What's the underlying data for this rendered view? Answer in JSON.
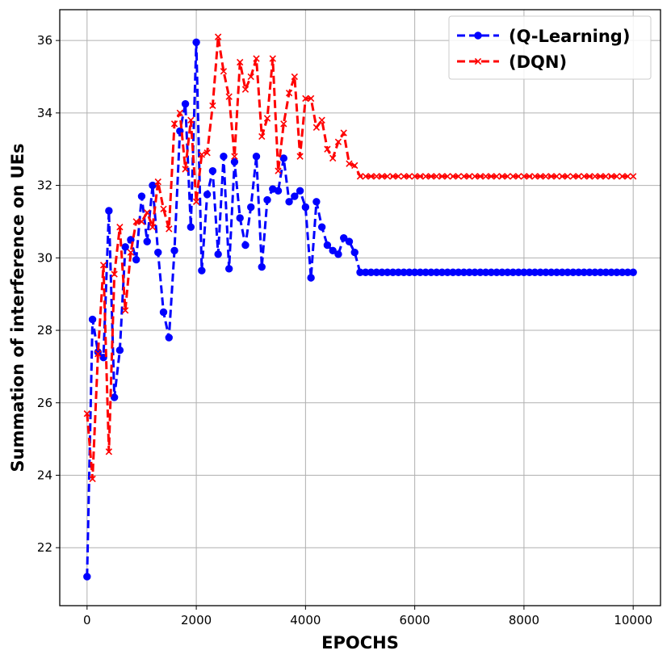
{
  "chart_data": {
    "type": "line",
    "xlabel": "EPOCHS",
    "ylabel": "Summation of interference on UEs",
    "xlim": [
      -500,
      10500
    ],
    "ylim": [
      20.4,
      36.85
    ],
    "xticks": [
      0,
      2000,
      4000,
      6000,
      8000,
      10000
    ],
    "yticks": [
      22,
      24,
      26,
      28,
      30,
      32,
      34,
      36
    ],
    "grid": true,
    "legend_position": "top-right",
    "series": [
      {
        "name": "(Q-Learning)",
        "color": "#0000ff",
        "marker": "circle",
        "line_style": "dashed",
        "x": [
          0,
          100,
          200,
          300,
          400,
          500,
          600,
          700,
          800,
          900,
          1000,
          1100,
          1200,
          1300,
          1400,
          1500,
          1600,
          1700,
          1800,
          1900,
          2000,
          2100,
          2200,
          2300,
          2400,
          2500,
          2600,
          2700,
          2800,
          2900,
          3000,
          3100,
          3200,
          3300,
          3400,
          3500,
          3600,
          3700,
          3800,
          3900,
          4000,
          4100,
          4200,
          4300,
          4400,
          4500,
          4600,
          4700,
          4800,
          4900,
          5000,
          5100,
          5200,
          5300,
          5400,
          5500,
          5600,
          5700,
          5800,
          5900,
          6000,
          6100,
          6200,
          6300,
          6400,
          6500,
          6600,
          6700,
          6800,
          6900,
          7000,
          7100,
          7200,
          7300,
          7400,
          7500,
          7600,
          7700,
          7800,
          7900,
          8000,
          8100,
          8200,
          8300,
          8400,
          8500,
          8600,
          8700,
          8800,
          8900,
          9000,
          9100,
          9200,
          9300,
          9400,
          9500,
          9600,
          9700,
          9800,
          9900,
          10000
        ],
        "y": [
          21.2,
          28.3,
          27.4,
          27.25,
          31.3,
          26.15,
          27.45,
          30.3,
          30.5,
          29.95,
          31.7,
          30.45,
          32.0,
          30.15,
          28.5,
          27.8,
          30.2,
          33.5,
          34.25,
          30.85,
          35.95,
          29.65,
          31.75,
          32.4,
          30.1,
          32.8,
          29.7,
          32.65,
          31.1,
          30.35,
          31.4,
          32.8,
          29.75,
          31.6,
          31.9,
          31.85,
          32.75,
          31.55,
          31.7,
          31.85,
          31.4,
          29.45,
          31.55,
          30.85,
          30.35,
          30.2,
          30.1,
          30.55,
          30.45,
          30.15,
          29.6,
          29.6,
          29.6,
          29.6,
          29.6,
          29.6,
          29.6,
          29.6,
          29.6,
          29.6,
          29.6,
          29.6,
          29.6,
          29.6,
          29.6,
          29.6,
          29.6,
          29.6,
          29.6,
          29.6,
          29.6,
          29.6,
          29.6,
          29.6,
          29.6,
          29.6,
          29.6,
          29.6,
          29.6,
          29.6,
          29.6,
          29.6,
          29.6,
          29.6,
          29.6,
          29.6,
          29.6,
          29.6,
          29.6,
          29.6,
          29.6,
          29.6,
          29.6,
          29.6,
          29.6,
          29.6,
          29.6,
          29.6,
          29.6,
          29.6,
          29.6
        ]
      },
      {
        "name": "(DQN)",
        "color": "#ff0000",
        "marker": "x",
        "line_style": "dashed",
        "x": [
          0,
          100,
          200,
          300,
          400,
          500,
          600,
          700,
          800,
          900,
          1000,
          1100,
          1200,
          1300,
          1400,
          1500,
          1600,
          1700,
          1800,
          1900,
          2000,
          2100,
          2200,
          2300,
          2400,
          2500,
          2600,
          2700,
          2800,
          2900,
          3000,
          3100,
          3200,
          3300,
          3400,
          3500,
          3600,
          3700,
          3800,
          3900,
          4000,
          4100,
          4200,
          4300,
          4400,
          4500,
          4600,
          4700,
          4800,
          4900,
          5000,
          5100,
          5200,
          5300,
          5400,
          5500,
          5600,
          5700,
          5800,
          5900,
          6000,
          6100,
          6200,
          6300,
          6400,
          6500,
          6600,
          6700,
          6800,
          6900,
          7000,
          7100,
          7200,
          7300,
          7400,
          7500,
          7600,
          7700,
          7800,
          7900,
          8000,
          8100,
          8200,
          8300,
          8400,
          8500,
          8600,
          8700,
          8800,
          8900,
          9000,
          9100,
          9200,
          9300,
          9400,
          9500,
          9600,
          9700,
          9800,
          9900,
          10000
        ],
        "y": [
          25.7,
          23.9,
          27.35,
          29.8,
          24.65,
          29.55,
          30.85,
          28.55,
          30.15,
          31.0,
          31.0,
          31.25,
          30.85,
          32.1,
          31.35,
          30.8,
          33.7,
          34.0,
          32.45,
          33.8,
          31.55,
          32.85,
          32.9,
          34.2,
          36.1,
          35.15,
          34.45,
          32.8,
          35.4,
          34.65,
          35.0,
          35.5,
          33.35,
          33.85,
          35.5,
          32.4,
          33.7,
          34.55,
          35.0,
          32.8,
          34.4,
          34.4,
          33.6,
          33.8,
          33.0,
          32.75,
          33.2,
          33.45,
          32.6,
          32.55,
          32.25,
          32.25,
          32.25,
          32.25,
          32.25,
          32.25,
          32.25,
          32.25,
          32.25,
          32.25,
          32.25,
          32.25,
          32.25,
          32.25,
          32.25,
          32.25,
          32.25,
          32.25,
          32.25,
          32.25,
          32.25,
          32.25,
          32.25,
          32.25,
          32.25,
          32.25,
          32.25,
          32.25,
          32.25,
          32.25,
          32.25,
          32.25,
          32.25,
          32.25,
          32.25,
          32.25,
          32.25,
          32.25,
          32.25,
          32.25,
          32.25,
          32.25,
          32.25,
          32.25,
          32.25,
          32.25,
          32.25,
          32.25,
          32.25,
          32.25,
          32.25
        ]
      }
    ]
  }
}
